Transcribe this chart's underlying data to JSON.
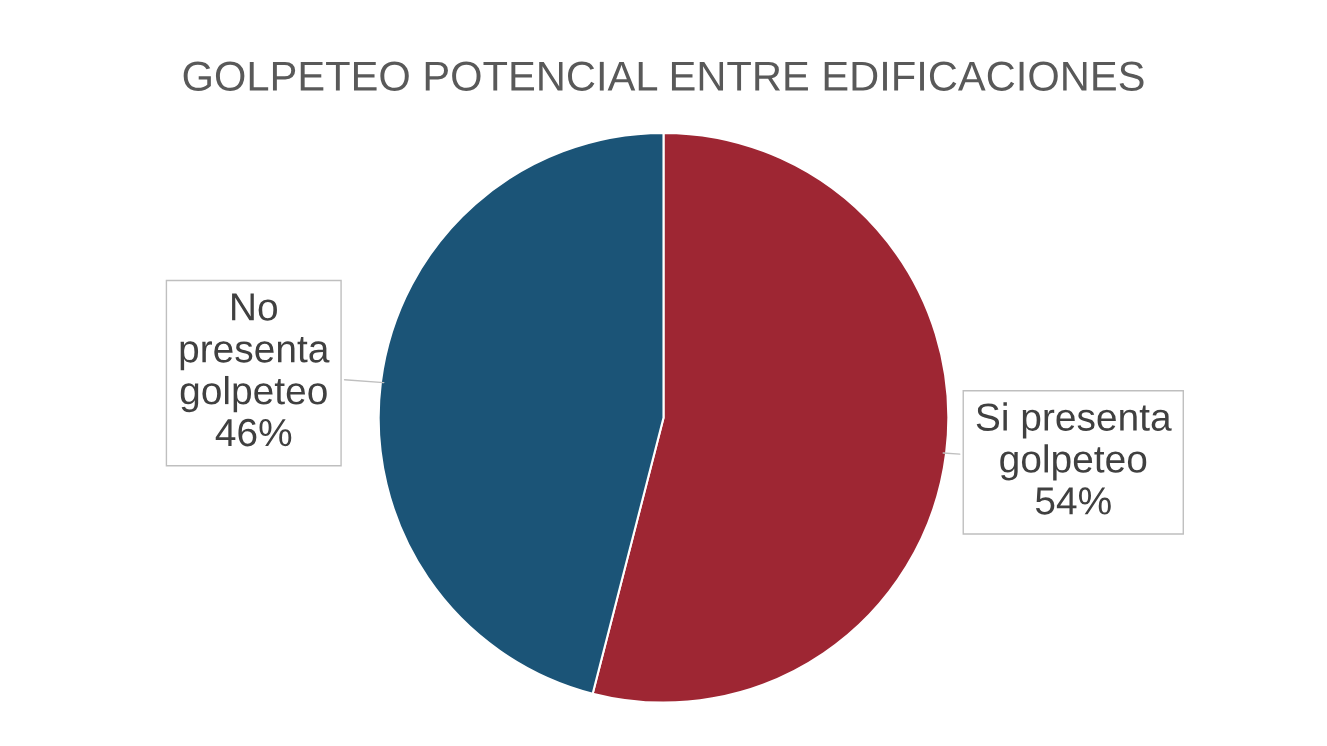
{
  "chart_data": {
    "type": "pie",
    "title": "GOLPETEO POTENCIAL ENTRE EDIFICACIONES",
    "categories": [
      "Si presenta golpeteo",
      "No presenta golpeteo"
    ],
    "values": [
      54,
      46
    ],
    "colors": [
      "#9e2633",
      "#1b5477"
    ],
    "value_labels": [
      "54%",
      "46%"
    ]
  }
}
